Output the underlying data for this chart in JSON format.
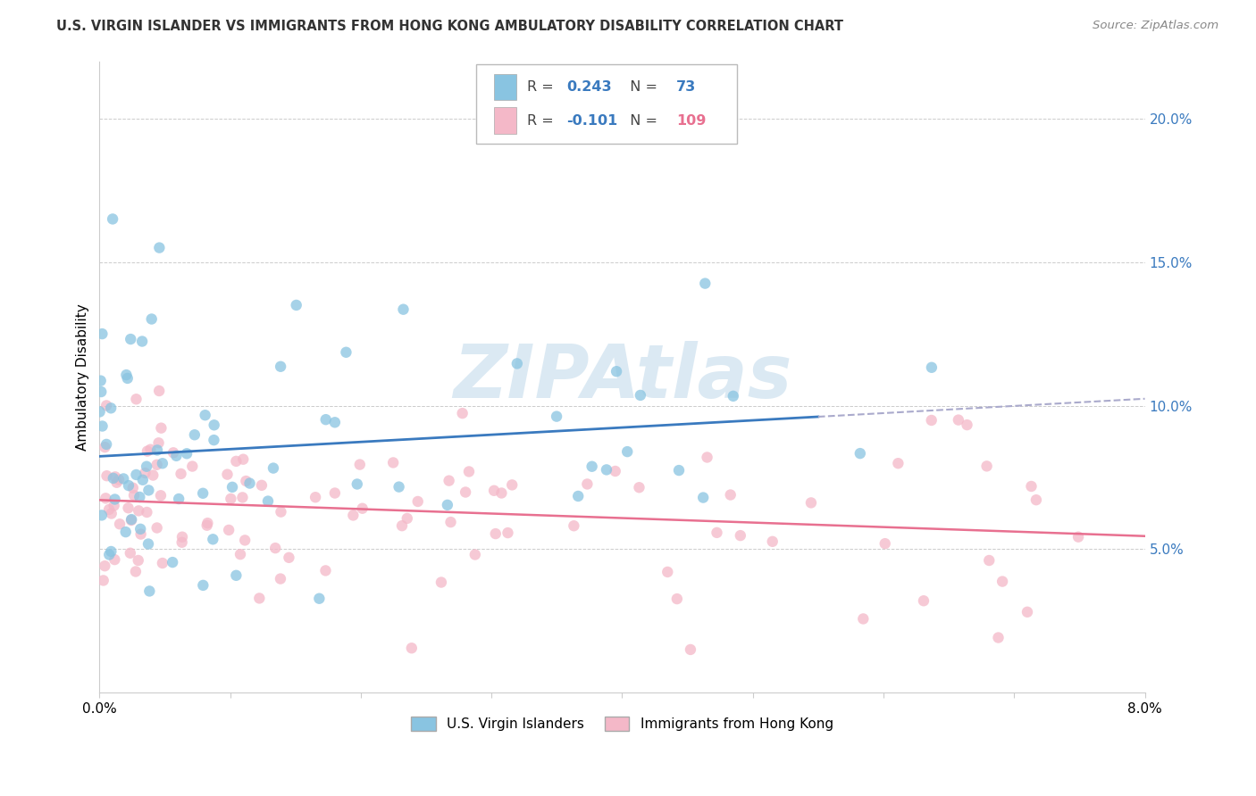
{
  "title": "U.S. VIRGIN ISLANDER VS IMMIGRANTS FROM HONG KONG AMBULATORY DISABILITY CORRELATION CHART",
  "source": "Source: ZipAtlas.com",
  "ylabel": "Ambulatory Disability",
  "legend_blue_label": "U.S. Virgin Islanders",
  "legend_pink_label": "Immigrants from Hong Kong",
  "blue_R": 0.243,
  "blue_N": 73,
  "pink_R": -0.101,
  "pink_N": 109,
  "blue_color": "#89c4e1",
  "pink_color": "#f4b8c8",
  "blue_line_color": "#3a7abf",
  "pink_line_color": "#e87090",
  "text_blue_color": "#3a7abf",
  "text_pink_color": "#e87090",
  "right_yticks": [
    0.05,
    0.1,
    0.15,
    0.2
  ],
  "right_ytick_labels": [
    "5.0%",
    "10.0%",
    "15.0%",
    "20.0%"
  ],
  "xlim": [
    0.0,
    0.08
  ],
  "ylim": [
    0.0,
    0.22
  ],
  "blue_seed": 12,
  "pink_seed": 77,
  "watermark": "ZIPAtlas"
}
